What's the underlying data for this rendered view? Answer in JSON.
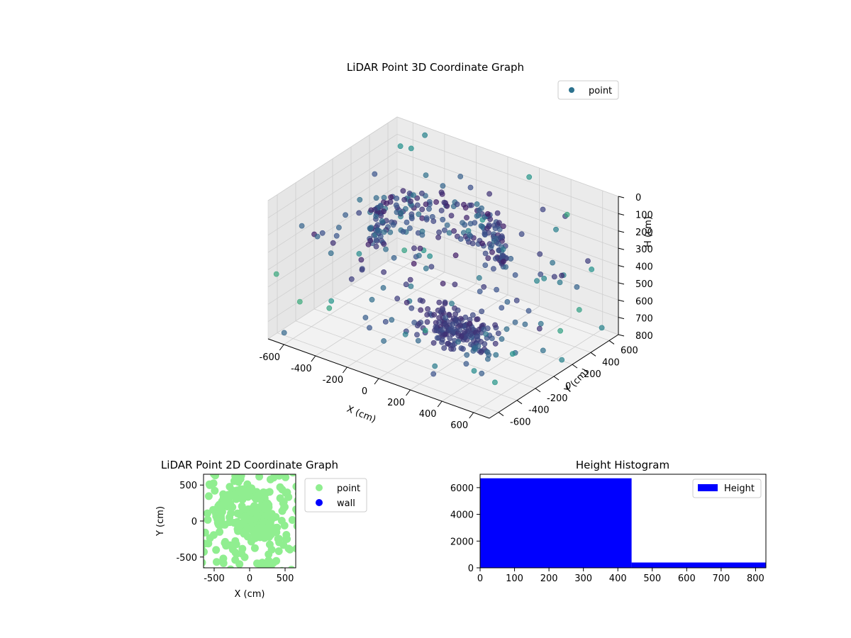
{
  "chart_data": [
    {
      "type": "scatter3d",
      "title": "LiDAR Point 3D Coordinate Graph",
      "xlabel": "X (cm)",
      "ylabel": "Y (cm)",
      "zlabel": "H (cm)",
      "xlim": [
        -700,
        700
      ],
      "ylim": [
        -700,
        700
      ],
      "zlim": [
        800,
        0
      ],
      "xticks": [
        -600,
        -400,
        -200,
        0,
        200,
        400,
        600
      ],
      "yticks": [
        -600,
        -400,
        -200,
        0,
        200,
        400,
        600
      ],
      "zticks": [
        0,
        100,
        200,
        300,
        400,
        500,
        600,
        700,
        800
      ],
      "grid": true,
      "legend": {
        "position": "top-right",
        "entries": [
          "point"
        ]
      },
      "colormap": "viridis",
      "legend_color": "#2c728e",
      "clusters": [
        {
          "shape": "arc",
          "center": [
            -80,
            60
          ],
          "radius": 360,
          "angle_from": 20,
          "angle_to": 200,
          "h_from": 180,
          "h_to": 420,
          "count": 200
        },
        {
          "shape": "blob",
          "center": [
            120,
            -30
          ],
          "spread": [
            120,
            90
          ],
          "h_range": [
            650,
            800
          ],
          "count": 180
        },
        {
          "shape": "scatter",
          "x_range": [
            -700,
            700
          ],
          "y_range": [
            -700,
            700
          ],
          "h_range": [
            0,
            800
          ],
          "count": 150
        }
      ]
    },
    {
      "type": "scatter",
      "title": "LiDAR Point 2D Coordinate Graph",
      "xlabel": "X (cm)",
      "ylabel": "Y (cm)",
      "xlim": [
        -650,
        650
      ],
      "ylim": [
        -650,
        650
      ],
      "xticks": [
        -500,
        0,
        500
      ],
      "yticks": [
        -500,
        0,
        500
      ],
      "legend": {
        "position": "right",
        "entries": [
          "point",
          "wall"
        ]
      },
      "series": [
        {
          "name": "point",
          "color": "#90ee90"
        },
        {
          "name": "wall",
          "color": "#0000ff"
        }
      ]
    },
    {
      "type": "bar",
      "title": "Height Histogram",
      "xlabel": "",
      "ylabel": "",
      "xlim": [
        0,
        830
      ],
      "ylim": [
        0,
        7000
      ],
      "xticks": [
        0,
        100,
        200,
        300,
        400,
        500,
        600,
        700,
        800
      ],
      "yticks": [
        0,
        2000,
        4000,
        6000
      ],
      "legend": {
        "position": "top-right",
        "entries": [
          "Height"
        ]
      },
      "color": "#0000ff",
      "bins": [
        {
          "from": 0,
          "to": 440,
          "count": 6700
        },
        {
          "from": 440,
          "to": 830,
          "count": 400
        }
      ]
    }
  ]
}
